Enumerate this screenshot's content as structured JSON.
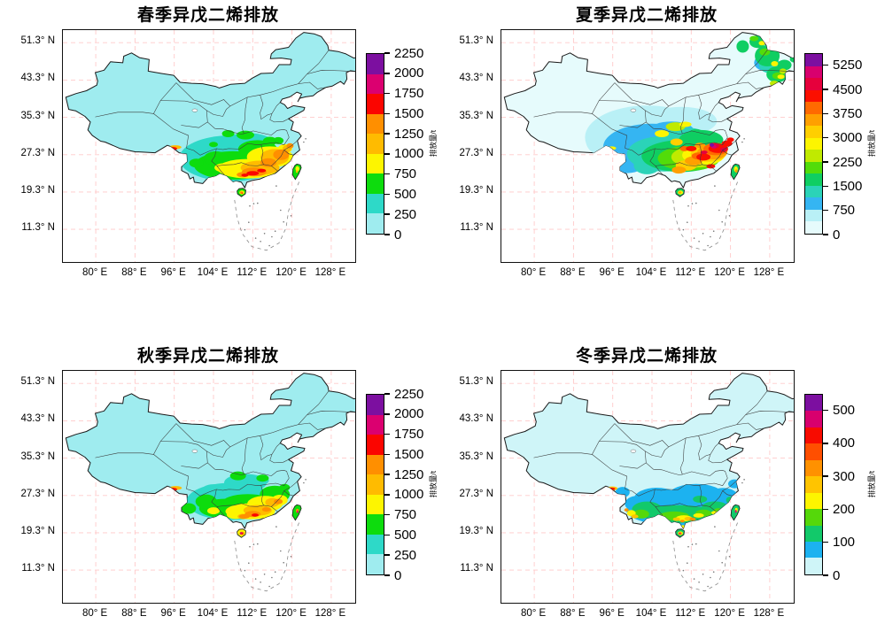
{
  "figure": {
    "lat_ticks": [
      "51.3° N",
      "43.3° N",
      "35.3° N",
      "27.3° N",
      "19.3° N",
      "11.3° N"
    ],
    "lon_ticks": [
      "80° E",
      "88° E",
      "96° E",
      "104° E",
      "112° E",
      "120° E",
      "128° E"
    ],
    "colorbar_unit_label": "排放量/t",
    "map_region": "China province-level map with dashed South China Sea boundary, Taiwan and Hainan islands"
  },
  "chart_data": [
    {
      "type": "map-heatmap",
      "season": "spring",
      "title": "春季异戊二烯排放",
      "unit_label": "排放量/t",
      "colorbar_ticks": [
        0,
        250,
        500,
        750,
        1000,
        1250,
        1500,
        1750,
        2000,
        2250
      ],
      "colorbar_max": 2250,
      "segment_bounds": [
        0,
        250,
        500,
        750,
        1000,
        1250,
        1500,
        1750,
        2000,
        2250
      ],
      "segment_colors": [
        "#9fecef",
        "#2ed9c8",
        "#0ddc0d",
        "#fdf500",
        "#ffbb00",
        "#ff8f00",
        "#fb0500",
        "#db0070",
        "#7c0fa0"
      ],
      "spatial_pattern": "High emissions 500-1750 t across South China (Guangxi, Guangdong, Hunan, Jiangxi, Fujian); small red cells ~1500-1750 t in Guangdong and a red streak in SE Tibet; northern and western China near 0-250 t."
    },
    {
      "type": "map-heatmap",
      "season": "summer",
      "title": "夏季异戊二烯排放",
      "unit_label": "排放量/t",
      "colorbar_ticks": [
        0,
        750,
        1500,
        2250,
        3000,
        3750,
        4500,
        5250
      ],
      "colorbar_max": 5625,
      "segment_bounds": [
        0,
        375,
        750,
        1125,
        1500,
        1875,
        2250,
        2625,
        3000,
        3375,
        3750,
        4125,
        4500,
        4875,
        5250,
        5625
      ],
      "segment_colors": [
        "#e6fbfc",
        "#b9f0f6",
        "#35b5f2",
        "#2bd3b8",
        "#0fce62",
        "#52dc0a",
        "#c0ea00",
        "#fdf500",
        "#ffcf00",
        "#ffa000",
        "#ff6a00",
        "#fb0f00",
        "#e6003c",
        "#d8006e",
        "#7c0fa0"
      ],
      "spatial_pattern": "Nationwide maximum season: intense red 3000-4500 t over SE China (Hunan-Jiangxi-Fujian-Zhejiang-Anhui) with an isolated purple cell >5250 t near 116°E/29.5°N; 750-2250 t green/yellow over NE China (Heilongjiang, Jilin); blue/cyan 375-1500 t over Sichuan and SW; Tibet, Xinjiang and North China Plain near 0."
    },
    {
      "type": "map-heatmap",
      "season": "autumn",
      "title": "秋季异戊二烯排放",
      "unit_label": "排放量/t",
      "colorbar_ticks": [
        0,
        250,
        500,
        750,
        1000,
        1250,
        1500,
        1750,
        2000,
        2250
      ],
      "colorbar_max": 2250,
      "segment_bounds": [
        0,
        250,
        500,
        750,
        1000,
        1250,
        1500,
        1750,
        2000,
        2250
      ],
      "segment_colors": [
        "#9fecef",
        "#2ed9c8",
        "#0ddc0d",
        "#fdf500",
        "#ffbb00",
        "#ff8f00",
        "#fb0500",
        "#db0070",
        "#7c0fa0"
      ],
      "spatial_pattern": "Similar to spring but weaker: 750-1500 t yellow/orange over Guangxi-Guangdong, magenta cells ~1750-2000 t on Hainan, local maxima on Taiwan and in SE Tibet; most of China 0-250 t."
    },
    {
      "type": "map-heatmap",
      "season": "winter",
      "title": "冬季异戊二烯排放",
      "unit_label": "排放量/t",
      "colorbar_ticks": [
        0,
        100,
        200,
        300,
        400,
        500
      ],
      "colorbar_max": 550,
      "segment_bounds": [
        0,
        50,
        100,
        150,
        200,
        250,
        300,
        350,
        400,
        450,
        500,
        550
      ],
      "segment_colors": [
        "#cff5f8",
        "#1cb2f0",
        "#12c96a",
        "#55d80a",
        "#fdf500",
        "#ffc400",
        "#ff9100",
        "#ff4f00",
        "#f80b00",
        "#d8006e",
        "#7c0fa0"
      ],
      "spatial_pattern": "Emissions confined to the far southern coast (Yunnan, Guangxi, Guangdong, Fujian, 50-250 t blue/green); magenta maxima ~450-500 t on Hainan and Taiwan; small yellow/red streak in SE Tibet; rest of China near 0 t."
    }
  ]
}
